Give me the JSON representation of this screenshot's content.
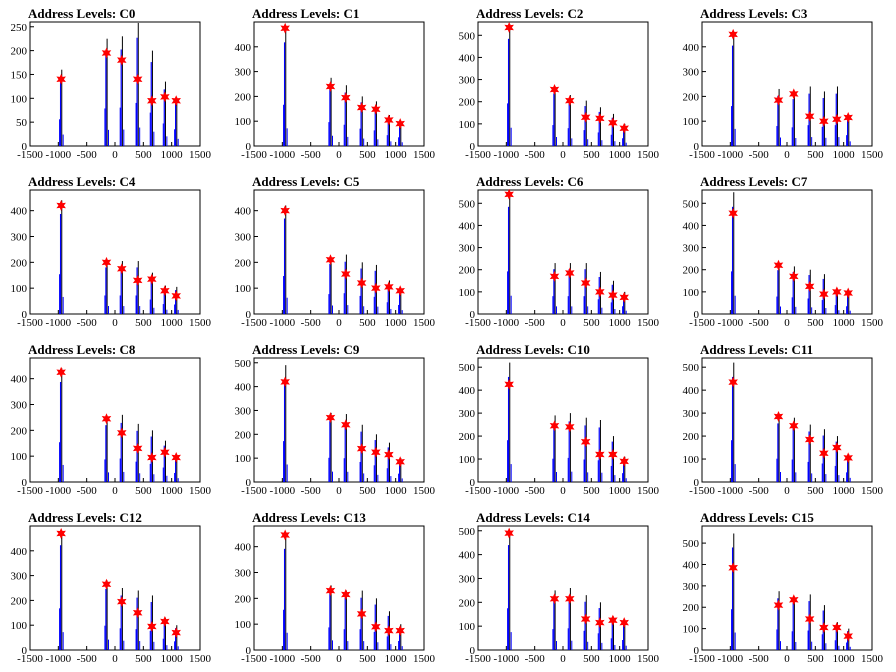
{
  "colors": {
    "blue": "#0000ff",
    "black": "#000000",
    "marker": "#ff0000"
  },
  "chart_data": [
    {
      "title": "Address Levels: C0",
      "type": "bar",
      "xlim": [
        -1500,
        1500
      ],
      "ylim": [
        0,
        260
      ],
      "xticks": [
        "-1500",
        "-1000",
        "-500",
        "0",
        "500",
        "1000",
        "1500"
      ],
      "yticks": [
        "0",
        "50",
        "100",
        "150",
        "200",
        "250"
      ],
      "peaks": [
        {
          "x": -950,
          "y": 160,
          "marker": 140
        },
        {
          "x": -150,
          "y": 225,
          "marker": 195
        },
        {
          "x": 120,
          "y": 230,
          "marker": 180
        },
        {
          "x": 400,
          "y": 258,
          "marker": 140
        },
        {
          "x": 650,
          "y": 200,
          "marker": 95
        },
        {
          "x": 880,
          "y": 135,
          "marker": 103
        },
        {
          "x": 1080,
          "y": 100,
          "marker": 95
        }
      ]
    },
    {
      "title": "Address Levels: C1",
      "type": "bar",
      "xlim": [
        -1500,
        1500
      ],
      "ylim": [
        0,
        500
      ],
      "xticks": [
        "-1500",
        "-1000",
        "-500",
        "0",
        "500",
        "1000",
        "1500"
      ],
      "yticks": [
        "0",
        "100",
        "200",
        "300",
        "400"
      ],
      "peaks": [
        {
          "x": -950,
          "y": 475,
          "marker": 475
        },
        {
          "x": -150,
          "y": 275,
          "marker": 240
        },
        {
          "x": 120,
          "y": 245,
          "marker": 195
        },
        {
          "x": 400,
          "y": 200,
          "marker": 155
        },
        {
          "x": 650,
          "y": 180,
          "marker": 148
        },
        {
          "x": 880,
          "y": 125,
          "marker": 105
        },
        {
          "x": 1080,
          "y": 100,
          "marker": 90
        }
      ]
    },
    {
      "title": "Address Levels: C2",
      "type": "bar",
      "xlim": [
        -1500,
        1500
      ],
      "ylim": [
        0,
        560
      ],
      "xticks": [
        "-1500",
        "-1000",
        "-500",
        "0",
        "500",
        "1000",
        "1500"
      ],
      "yticks": [
        "0",
        "100",
        "200",
        "300",
        "400",
        "500"
      ],
      "peaks": [
        {
          "x": -950,
          "y": 550,
          "marker": 535
        },
        {
          "x": -150,
          "y": 270,
          "marker": 255
        },
        {
          "x": 120,
          "y": 230,
          "marker": 205
        },
        {
          "x": 400,
          "y": 205,
          "marker": 130
        },
        {
          "x": 650,
          "y": 175,
          "marker": 125
        },
        {
          "x": 880,
          "y": 145,
          "marker": 105
        },
        {
          "x": 1080,
          "y": 100,
          "marker": 80
        }
      ]
    },
    {
      "title": "Address Levels: C3",
      "type": "bar",
      "xlim": [
        -1500,
        1500
      ],
      "ylim": [
        0,
        500
      ],
      "xticks": [
        "-1500",
        "-1000",
        "-500",
        "0",
        "500",
        "1000",
        "1500"
      ],
      "yticks": [
        "0",
        "100",
        "200",
        "300",
        "400"
      ],
      "peaks": [
        {
          "x": -950,
          "y": 460,
          "marker": 450
        },
        {
          "x": -150,
          "y": 230,
          "marker": 185
        },
        {
          "x": 120,
          "y": 215,
          "marker": 210
        },
        {
          "x": 400,
          "y": 240,
          "marker": 120
        },
        {
          "x": 650,
          "y": 220,
          "marker": 100
        },
        {
          "x": 880,
          "y": 240,
          "marker": 108
        },
        {
          "x": 1080,
          "y": 125,
          "marker": 115
        }
      ]
    },
    {
      "title": "Address Levels: C4",
      "type": "bar",
      "xlim": [
        -1500,
        1500
      ],
      "ylim": [
        0,
        480
      ],
      "xticks": [
        "-1500",
        "-1000",
        "-500",
        "0",
        "500",
        "1000",
        "1500"
      ],
      "yticks": [
        "0",
        "100",
        "200",
        "300",
        "400"
      ],
      "peaks": [
        {
          "x": -950,
          "y": 440,
          "marker": 420
        },
        {
          "x": -150,
          "y": 205,
          "marker": 200
        },
        {
          "x": 120,
          "y": 205,
          "marker": 175
        },
        {
          "x": 400,
          "y": 205,
          "marker": 130
        },
        {
          "x": 650,
          "y": 160,
          "marker": 135
        },
        {
          "x": 880,
          "y": 110,
          "marker": 90
        },
        {
          "x": 1080,
          "y": 105,
          "marker": 70
        }
      ]
    },
    {
      "title": "Address Levels: C5",
      "type": "bar",
      "xlim": [
        -1500,
        1500
      ],
      "ylim": [
        0,
        480
      ],
      "xticks": [
        "-1500",
        "-1000",
        "-500",
        "0",
        "500",
        "1000",
        "1500"
      ],
      "yticks": [
        "0",
        "100",
        "200",
        "300",
        "400"
      ],
      "peaks": [
        {
          "x": -950,
          "y": 420,
          "marker": 400
        },
        {
          "x": -150,
          "y": 220,
          "marker": 210
        },
        {
          "x": 120,
          "y": 230,
          "marker": 155
        },
        {
          "x": 400,
          "y": 200,
          "marker": 120
        },
        {
          "x": 650,
          "y": 190,
          "marker": 100
        },
        {
          "x": 880,
          "y": 130,
          "marker": 105
        },
        {
          "x": 1080,
          "y": 100,
          "marker": 90
        }
      ]
    },
    {
      "title": "Address Levels: C6",
      "type": "bar",
      "xlim": [
        -1500,
        1500
      ],
      "ylim": [
        0,
        560
      ],
      "xticks": [
        "-1500",
        "-1000",
        "-500",
        "0",
        "500",
        "1000",
        "1500"
      ],
      "yticks": [
        "0",
        "100",
        "200",
        "300",
        "400",
        "500"
      ],
      "peaks": [
        {
          "x": -950,
          "y": 550,
          "marker": 540
        },
        {
          "x": -150,
          "y": 230,
          "marker": 170
        },
        {
          "x": 120,
          "y": 230,
          "marker": 185
        },
        {
          "x": 400,
          "y": 230,
          "marker": 140
        },
        {
          "x": 650,
          "y": 190,
          "marker": 100
        },
        {
          "x": 880,
          "y": 150,
          "marker": 85
        },
        {
          "x": 1080,
          "y": 100,
          "marker": 75
        }
      ]
    },
    {
      "title": "Address Levels: C7",
      "type": "bar",
      "xlim": [
        -1500,
        1500
      ],
      "ylim": [
        0,
        560
      ],
      "xticks": [
        "-1500",
        "-1000",
        "-500",
        "0",
        "500",
        "1000",
        "1500"
      ],
      "yticks": [
        "0",
        "100",
        "200",
        "300",
        "400",
        "500"
      ],
      "peaks": [
        {
          "x": -950,
          "y": 550,
          "marker": 455
        },
        {
          "x": -150,
          "y": 225,
          "marker": 220
        },
        {
          "x": 120,
          "y": 215,
          "marker": 170
        },
        {
          "x": 400,
          "y": 200,
          "marker": 125
        },
        {
          "x": 650,
          "y": 180,
          "marker": 90
        },
        {
          "x": 880,
          "y": 115,
          "marker": 100
        },
        {
          "x": 1080,
          "y": 100,
          "marker": 95
        }
      ]
    },
    {
      "title": "Address Levels: C8",
      "type": "bar",
      "xlim": [
        -1500,
        1500
      ],
      "ylim": [
        0,
        480
      ],
      "xticks": [
        "-1500",
        "-1000",
        "-500",
        "0",
        "500",
        "1000",
        "1500"
      ],
      "yticks": [
        "0",
        "100",
        "200",
        "300",
        "400"
      ],
      "peaks": [
        {
          "x": -950,
          "y": 440,
          "marker": 425
        },
        {
          "x": -150,
          "y": 250,
          "marker": 245
        },
        {
          "x": 120,
          "y": 260,
          "marker": 190
        },
        {
          "x": 400,
          "y": 225,
          "marker": 130
        },
        {
          "x": 650,
          "y": 200,
          "marker": 95
        },
        {
          "x": 880,
          "y": 160,
          "marker": 115
        },
        {
          "x": 1080,
          "y": 100,
          "marker": 95
        }
      ]
    },
    {
      "title": "Address Levels: C9",
      "type": "bar",
      "xlim": [
        -1500,
        1500
      ],
      "ylim": [
        0,
        520
      ],
      "xticks": [
        "-1500",
        "-1000",
        "-500",
        "0",
        "500",
        "1000",
        "1500"
      ],
      "yticks": [
        "0",
        "100",
        "200",
        "300",
        "400",
        "500"
      ],
      "peaks": [
        {
          "x": -950,
          "y": 490,
          "marker": 420
        },
        {
          "x": -150,
          "y": 290,
          "marker": 270
        },
        {
          "x": 120,
          "y": 285,
          "marker": 240
        },
        {
          "x": 400,
          "y": 240,
          "marker": 140
        },
        {
          "x": 650,
          "y": 200,
          "marker": 125
        },
        {
          "x": 880,
          "y": 165,
          "marker": 115
        },
        {
          "x": 1080,
          "y": 100,
          "marker": 85
        }
      ]
    },
    {
      "title": "Address Levels: C10",
      "type": "bar",
      "xlim": [
        -1500,
        1500
      ],
      "ylim": [
        0,
        540
      ],
      "xticks": [
        "-1500",
        "-1000",
        "-500",
        "0",
        "500",
        "1000",
        "1500"
      ],
      "yticks": [
        "0",
        "100",
        "200",
        "300",
        "400",
        "500"
      ],
      "peaks": [
        {
          "x": -950,
          "y": 520,
          "marker": 425
        },
        {
          "x": -150,
          "y": 290,
          "marker": 245
        },
        {
          "x": 120,
          "y": 300,
          "marker": 240
        },
        {
          "x": 400,
          "y": 280,
          "marker": 175
        },
        {
          "x": 650,
          "y": 270,
          "marker": 120
        },
        {
          "x": 880,
          "y": 200,
          "marker": 120
        },
        {
          "x": 1080,
          "y": 110,
          "marker": 90
        }
      ]
    },
    {
      "title": "Address Levels: C11",
      "type": "bar",
      "xlim": [
        -1500,
        1500
      ],
      "ylim": [
        0,
        540
      ],
      "xticks": [
        "-1500",
        "-1000",
        "-500",
        "0",
        "500",
        "1000",
        "1500"
      ],
      "yticks": [
        "0",
        "100",
        "200",
        "300",
        "400",
        "500"
      ],
      "peaks": [
        {
          "x": -950,
          "y": 520,
          "marker": 435
        },
        {
          "x": -150,
          "y": 290,
          "marker": 285
        },
        {
          "x": 120,
          "y": 280,
          "marker": 245
        },
        {
          "x": 400,
          "y": 250,
          "marker": 185
        },
        {
          "x": 650,
          "y": 230,
          "marker": 125
        },
        {
          "x": 880,
          "y": 200,
          "marker": 150
        },
        {
          "x": 1080,
          "y": 120,
          "marker": 105
        }
      ]
    },
    {
      "title": "Address Levels: C12",
      "type": "bar",
      "xlim": [
        -1500,
        1500
      ],
      "ylim": [
        0,
        500
      ],
      "xticks": [
        "-1500",
        "-1000",
        "-500",
        "0",
        "500",
        "1000",
        "1500"
      ],
      "yticks": [
        "0",
        "100",
        "200",
        "300",
        "400"
      ],
      "peaks": [
        {
          "x": -950,
          "y": 480,
          "marker": 470
        },
        {
          "x": -150,
          "y": 280,
          "marker": 265
        },
        {
          "x": 120,
          "y": 250,
          "marker": 195
        },
        {
          "x": 400,
          "y": 240,
          "marker": 150
        },
        {
          "x": 650,
          "y": 220,
          "marker": 95
        },
        {
          "x": 880,
          "y": 130,
          "marker": 115
        },
        {
          "x": 1080,
          "y": 100,
          "marker": 70
        }
      ]
    },
    {
      "title": "Address Levels: C13",
      "type": "bar",
      "xlim": [
        -1500,
        1500
      ],
      "ylim": [
        0,
        480
      ],
      "xticks": [
        "-1500",
        "-1000",
        "-500",
        "0",
        "500",
        "1000",
        "1500"
      ],
      "yticks": [
        "0",
        "100",
        "200",
        "300",
        "400"
      ],
      "peaks": [
        {
          "x": -950,
          "y": 445,
          "marker": 445
        },
        {
          "x": -150,
          "y": 250,
          "marker": 230
        },
        {
          "x": 120,
          "y": 230,
          "marker": 215
        },
        {
          "x": 400,
          "y": 230,
          "marker": 140
        },
        {
          "x": 650,
          "y": 200,
          "marker": 90
        },
        {
          "x": 880,
          "y": 150,
          "marker": 75
        },
        {
          "x": 1080,
          "y": 100,
          "marker": 75
        }
      ]
    },
    {
      "title": "Address Levels: C14",
      "type": "bar",
      "xlim": [
        -1500,
        1500
      ],
      "ylim": [
        0,
        520
      ],
      "xticks": [
        "-1500",
        "-1000",
        "-500",
        "0",
        "500",
        "1000",
        "1500"
      ],
      "yticks": [
        "0",
        "100",
        "200",
        "300",
        "400",
        "500"
      ],
      "peaks": [
        {
          "x": -950,
          "y": 500,
          "marker": 490
        },
        {
          "x": -150,
          "y": 250,
          "marker": 215
        },
        {
          "x": 120,
          "y": 260,
          "marker": 215
        },
        {
          "x": 400,
          "y": 230,
          "marker": 130
        },
        {
          "x": 650,
          "y": 200,
          "marker": 115
        },
        {
          "x": 880,
          "y": 140,
          "marker": 125
        },
        {
          "x": 1080,
          "y": 120,
          "marker": 115
        }
      ]
    },
    {
      "title": "Address Levels: C15",
      "type": "bar",
      "xlim": [
        -1500,
        1500
      ],
      "ylim": [
        0,
        580
      ],
      "xticks": [
        "-1500",
        "-1000",
        "-500",
        "0",
        "500",
        "1000",
        "1500"
      ],
      "yticks": [
        "0",
        "100",
        "200",
        "300",
        "400",
        "500"
      ],
      "peaks": [
        {
          "x": -950,
          "y": 545,
          "marker": 385
        },
        {
          "x": -150,
          "y": 275,
          "marker": 210
        },
        {
          "x": 120,
          "y": 250,
          "marker": 235
        },
        {
          "x": 400,
          "y": 260,
          "marker": 145
        },
        {
          "x": 650,
          "y": 210,
          "marker": 105
        },
        {
          "x": 880,
          "y": 130,
          "marker": 105
        },
        {
          "x": 1080,
          "y": 100,
          "marker": 65
        }
      ]
    }
  ]
}
